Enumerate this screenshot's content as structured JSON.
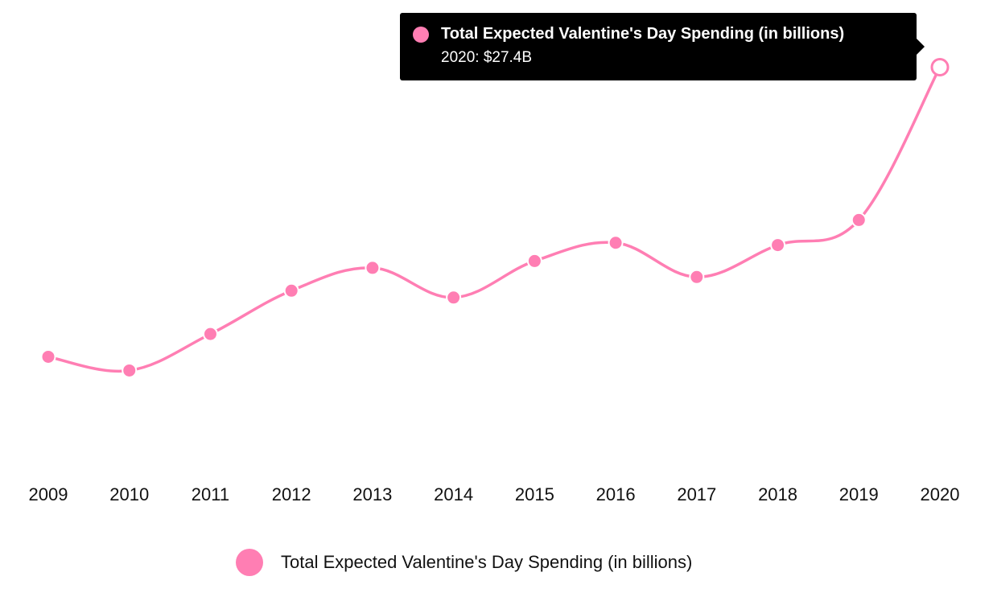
{
  "colors": {
    "series": "#ff7eb3",
    "tooltip_bg": "#000000",
    "tooltip_text": "#ffffff",
    "text": "#111111"
  },
  "tooltip": {
    "title": "Total Expected Valentine's Day Spending (in billions)",
    "value": "2020: $27.4B"
  },
  "legend": {
    "label": "Total Expected Valentine's Day Spending (in billions)",
    "position": "bottom-center"
  },
  "chart_data": {
    "type": "line",
    "categories": [
      "2009",
      "2010",
      "2011",
      "2012",
      "2013",
      "2014",
      "2015",
      "2016",
      "2017",
      "2018",
      "2019",
      "2020"
    ],
    "series": [
      {
        "name": "Total Expected Valentine's Day Spending (in billions)",
        "values": [
          14.7,
          14.1,
          15.7,
          17.6,
          18.6,
          17.3,
          18.9,
          19.7,
          18.2,
          19.6,
          20.7,
          27.4
        ]
      }
    ],
    "highlighted_point": {
      "category": "2020",
      "value": 27.4
    },
    "ylim": [
      12.0,
      28.3
    ],
    "grid": false,
    "smooth": true
  }
}
